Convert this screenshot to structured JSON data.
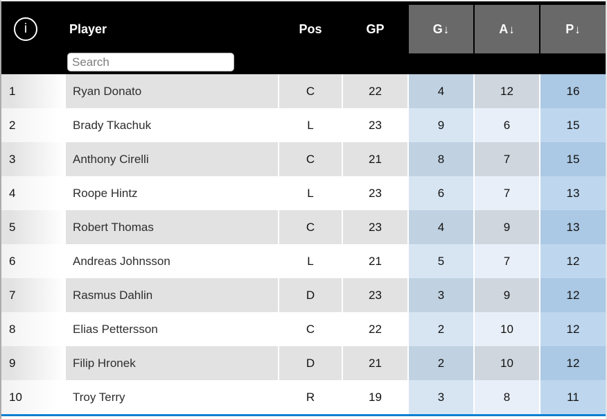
{
  "header": {
    "info_icon_glyph": "i",
    "search_placeholder": "Search",
    "columns": [
      {
        "key": "rank",
        "label": ""
      },
      {
        "key": "player",
        "label": "Player"
      },
      {
        "key": "pos",
        "label": "Pos"
      },
      {
        "key": "gp",
        "label": "GP"
      },
      {
        "key": "g",
        "label": "G",
        "sorted": true,
        "arrow": "↓"
      },
      {
        "key": "a",
        "label": "A",
        "sorted": true,
        "arrow": "↓"
      },
      {
        "key": "p",
        "label": "P",
        "sorted": true,
        "arrow": "↓"
      }
    ]
  },
  "table": {
    "rows": [
      {
        "rank": "1",
        "player": "Ryan Donato",
        "pos": "C",
        "gp": "22",
        "g": "4",
        "a": "12",
        "p": "16"
      },
      {
        "rank": "2",
        "player": "Brady Tkachuk",
        "pos": "L",
        "gp": "23",
        "g": "9",
        "a": "6",
        "p": "15"
      },
      {
        "rank": "3",
        "player": "Anthony Cirelli",
        "pos": "C",
        "gp": "21",
        "g": "8",
        "a": "7",
        "p": "15"
      },
      {
        "rank": "4",
        "player": "Roope Hintz",
        "pos": "L",
        "gp": "23",
        "g": "6",
        "a": "7",
        "p": "13"
      },
      {
        "rank": "5",
        "player": "Robert Thomas",
        "pos": "C",
        "gp": "23",
        "g": "4",
        "a": "9",
        "p": "13"
      },
      {
        "rank": "6",
        "player": "Andreas Johnsson",
        "pos": "L",
        "gp": "21",
        "g": "5",
        "a": "7",
        "p": "12"
      },
      {
        "rank": "7",
        "player": "Rasmus Dahlin",
        "pos": "D",
        "gp": "23",
        "g": "3",
        "a": "9",
        "p": "12"
      },
      {
        "rank": "8",
        "player": "Elias Pettersson",
        "pos": "C",
        "gp": "22",
        "g": "2",
        "a": "10",
        "p": "12"
      },
      {
        "rank": "9",
        "player": "Filip Hronek",
        "pos": "D",
        "gp": "21",
        "g": "2",
        "a": "10",
        "p": "12"
      },
      {
        "rank": "10",
        "player": "Troy Terry",
        "pos": "R",
        "gp": "19",
        "g": "3",
        "a": "8",
        "p": "11"
      }
    ]
  },
  "colors": {
    "header_bg": "#000000",
    "sorted_header_bg": "#696969",
    "stripe": "#e2e2e2",
    "g_odd": "#c0d2e2",
    "a_odd": "#cfd6de",
    "p_odd": "#abc8e4",
    "g_even": "#d7e5f3",
    "a_even": "#e9eff8",
    "p_even": "#bed7ef",
    "accent_blue": "#0d7fd0"
  }
}
